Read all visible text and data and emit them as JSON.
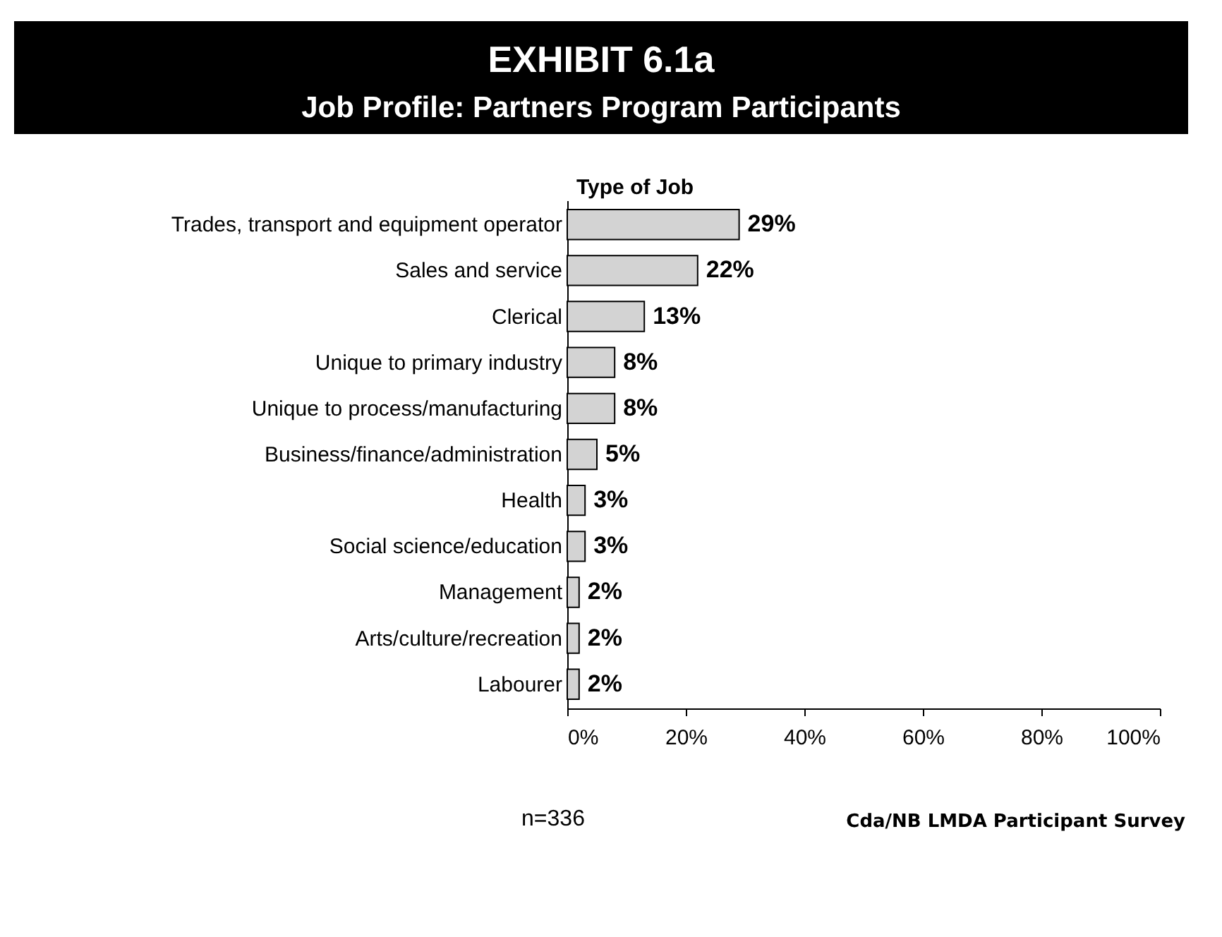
{
  "chart_data": {
    "type": "bar",
    "orientation": "horizontal",
    "title": "EXHIBIT 6.1a",
    "subtitle": "Job Profile: Partners Program Participants",
    "ylabel": "Type of Job",
    "categories": [
      "Trades, transport and equipment operator",
      "Sales and service",
      "Clerical",
      "Unique to primary industry",
      "Unique to process/manufacturing",
      "Business/finance/administration",
      "Health",
      "Social science/education",
      "Management",
      "Arts/culture/recreation",
      "Labourer"
    ],
    "values": [
      29,
      22,
      13,
      8,
      8,
      5,
      3,
      3,
      2,
      2,
      2
    ],
    "value_labels": [
      "29%",
      "22%",
      "13%",
      "8%",
      "8%",
      "5%",
      "3%",
      "3%",
      "2%",
      "2%",
      "2%"
    ],
    "color": "#d3d3d3",
    "xlim": [
      0,
      100
    ],
    "xticks": [
      {
        "value": 0,
        "label": "0%"
      },
      {
        "value": 20,
        "label": "20%"
      },
      {
        "value": 40,
        "label": "40%"
      },
      {
        "value": 60,
        "label": "60%"
      },
      {
        "value": 80,
        "label": "80%"
      },
      {
        "value": 100,
        "label": "100%"
      }
    ],
    "grid": false,
    "annotations": [
      "n=336",
      "Cda/NB LMDA Participant Survey"
    ]
  }
}
